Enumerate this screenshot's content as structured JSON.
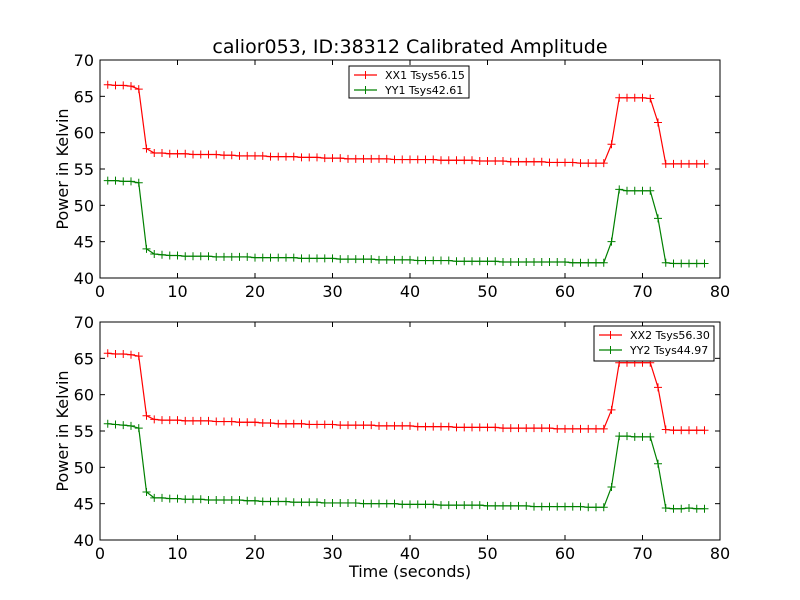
{
  "figure": {
    "title": "calior053, ID:38312 Calibrated Amplitude",
    "xlabel": "Time (seconds)"
  },
  "chart_data": [
    {
      "type": "line",
      "title": "calior053, ID:38312 Calibrated Amplitude",
      "xlabel": "",
      "ylabel": "Power in Kelvin",
      "xlim": [
        0,
        80
      ],
      "ylim": [
        40,
        70
      ],
      "xticks": [
        "0",
        "10",
        "20",
        "30",
        "40",
        "50",
        "60",
        "70",
        "80"
      ],
      "yticks": [
        "40",
        "45",
        "50",
        "55",
        "60",
        "65",
        "70"
      ],
      "legend_position": "top-center",
      "grid": false,
      "x": [
        1,
        2,
        3,
        4,
        5,
        6,
        7,
        8,
        9,
        10,
        11,
        12,
        13,
        14,
        15,
        16,
        17,
        18,
        19,
        20,
        21,
        22,
        23,
        24,
        25,
        26,
        27,
        28,
        29,
        30,
        31,
        32,
        33,
        34,
        35,
        36,
        37,
        38,
        39,
        40,
        41,
        42,
        43,
        44,
        45,
        46,
        47,
        48,
        49,
        50,
        51,
        52,
        53,
        54,
        55,
        56,
        57,
        58,
        59,
        60,
        61,
        62,
        63,
        64,
        65,
        66,
        67,
        68,
        69,
        70,
        71,
        72,
        73,
        74,
        75,
        76,
        77,
        78
      ],
      "series": [
        {
          "name": "XX1 Tsys56.15",
          "color": "#ff0000",
          "values": [
            66.6,
            66.5,
            66.5,
            66.4,
            66.0,
            57.8,
            57.2,
            57.2,
            57.1,
            57.1,
            57.1,
            57.0,
            57.0,
            57.0,
            57.0,
            56.9,
            56.9,
            56.8,
            56.8,
            56.8,
            56.8,
            56.7,
            56.7,
            56.7,
            56.7,
            56.6,
            56.6,
            56.6,
            56.5,
            56.5,
            56.5,
            56.4,
            56.4,
            56.4,
            56.4,
            56.4,
            56.4,
            56.3,
            56.3,
            56.3,
            56.3,
            56.3,
            56.3,
            56.2,
            56.2,
            56.2,
            56.2,
            56.2,
            56.1,
            56.1,
            56.1,
            56.1,
            56.0,
            56.0,
            56.0,
            56.0,
            56.0,
            55.9,
            55.9,
            55.9,
            55.9,
            55.8,
            55.8,
            55.8,
            55.8,
            58.4,
            64.8,
            64.8,
            64.8,
            64.8,
            64.7,
            61.4,
            55.7,
            55.7,
            55.7,
            55.7,
            55.7,
            55.7
          ]
        },
        {
          "name": "YY1 Tsys42.61",
          "color": "#008000",
          "values": [
            53.4,
            53.4,
            53.3,
            53.3,
            53.1,
            44.0,
            43.3,
            43.2,
            43.1,
            43.1,
            43.0,
            43.0,
            43.0,
            43.0,
            42.9,
            42.9,
            42.9,
            42.9,
            42.9,
            42.8,
            42.8,
            42.8,
            42.8,
            42.8,
            42.8,
            42.7,
            42.7,
            42.7,
            42.7,
            42.7,
            42.6,
            42.6,
            42.6,
            42.6,
            42.6,
            42.5,
            42.5,
            42.5,
            42.5,
            42.5,
            42.4,
            42.4,
            42.4,
            42.4,
            42.4,
            42.3,
            42.3,
            42.3,
            42.3,
            42.3,
            42.3,
            42.2,
            42.2,
            42.2,
            42.2,
            42.2,
            42.2,
            42.2,
            42.2,
            42.2,
            42.1,
            42.1,
            42.1,
            42.1,
            42.1,
            45.0,
            52.2,
            52.0,
            52.0,
            52.0,
            52.0,
            48.2,
            42.1,
            42.0,
            42.0,
            42.0,
            42.0,
            42.0
          ]
        }
      ]
    },
    {
      "type": "line",
      "title": "",
      "xlabel": "Time (seconds)",
      "ylabel": "Power in Kelvin",
      "xlim": [
        0,
        80
      ],
      "ylim": [
        40,
        70
      ],
      "xticks": [
        "0",
        "10",
        "20",
        "30",
        "40",
        "50",
        "60",
        "70",
        "80"
      ],
      "yticks": [
        "40",
        "45",
        "50",
        "55",
        "60",
        "65",
        "70"
      ],
      "legend_position": "top-right",
      "grid": false,
      "x": [
        1,
        2,
        3,
        4,
        5,
        6,
        7,
        8,
        9,
        10,
        11,
        12,
        13,
        14,
        15,
        16,
        17,
        18,
        19,
        20,
        21,
        22,
        23,
        24,
        25,
        26,
        27,
        28,
        29,
        30,
        31,
        32,
        33,
        34,
        35,
        36,
        37,
        38,
        39,
        40,
        41,
        42,
        43,
        44,
        45,
        46,
        47,
        48,
        49,
        50,
        51,
        52,
        53,
        54,
        55,
        56,
        57,
        58,
        59,
        60,
        61,
        62,
        63,
        64,
        65,
        66,
        67,
        68,
        69,
        70,
        71,
        72,
        73,
        74,
        75,
        76,
        77,
        78
      ],
      "series": [
        {
          "name": "XX2 Tsys56.30",
          "color": "#ff0000",
          "values": [
            65.7,
            65.6,
            65.6,
            65.5,
            65.3,
            57.1,
            56.6,
            56.5,
            56.5,
            56.5,
            56.4,
            56.4,
            56.4,
            56.4,
            56.3,
            56.3,
            56.3,
            56.2,
            56.2,
            56.2,
            56.1,
            56.1,
            56.0,
            56.0,
            56.0,
            56.0,
            55.9,
            55.9,
            55.9,
            55.9,
            55.8,
            55.8,
            55.8,
            55.8,
            55.8,
            55.7,
            55.7,
            55.7,
            55.7,
            55.7,
            55.6,
            55.6,
            55.6,
            55.6,
            55.6,
            55.5,
            55.5,
            55.5,
            55.5,
            55.5,
            55.5,
            55.4,
            55.4,
            55.4,
            55.4,
            55.4,
            55.4,
            55.4,
            55.3,
            55.3,
            55.3,
            55.3,
            55.3,
            55.3,
            55.3,
            57.9,
            64.4,
            64.4,
            64.4,
            64.4,
            64.4,
            61.0,
            55.2,
            55.1,
            55.1,
            55.1,
            55.1,
            55.1
          ]
        },
        {
          "name": "YY2 Tsys44.97",
          "color": "#008000",
          "values": [
            56.0,
            55.9,
            55.8,
            55.7,
            55.4,
            46.6,
            45.8,
            45.8,
            45.7,
            45.7,
            45.6,
            45.6,
            45.6,
            45.5,
            45.5,
            45.5,
            45.5,
            45.5,
            45.4,
            45.4,
            45.3,
            45.3,
            45.3,
            45.3,
            45.2,
            45.2,
            45.2,
            45.2,
            45.1,
            45.1,
            45.1,
            45.1,
            45.1,
            45.0,
            45.0,
            45.0,
            45.0,
            45.0,
            44.9,
            44.9,
            44.9,
            44.9,
            44.9,
            44.8,
            44.8,
            44.8,
            44.8,
            44.8,
            44.8,
            44.7,
            44.7,
            44.7,
            44.7,
            44.7,
            44.7,
            44.6,
            44.6,
            44.6,
            44.6,
            44.6,
            44.6,
            44.6,
            44.5,
            44.5,
            44.5,
            47.3,
            54.3,
            54.3,
            54.2,
            54.2,
            54.2,
            50.5,
            44.4,
            44.3,
            44.3,
            44.4,
            44.3,
            44.3
          ]
        }
      ]
    }
  ]
}
